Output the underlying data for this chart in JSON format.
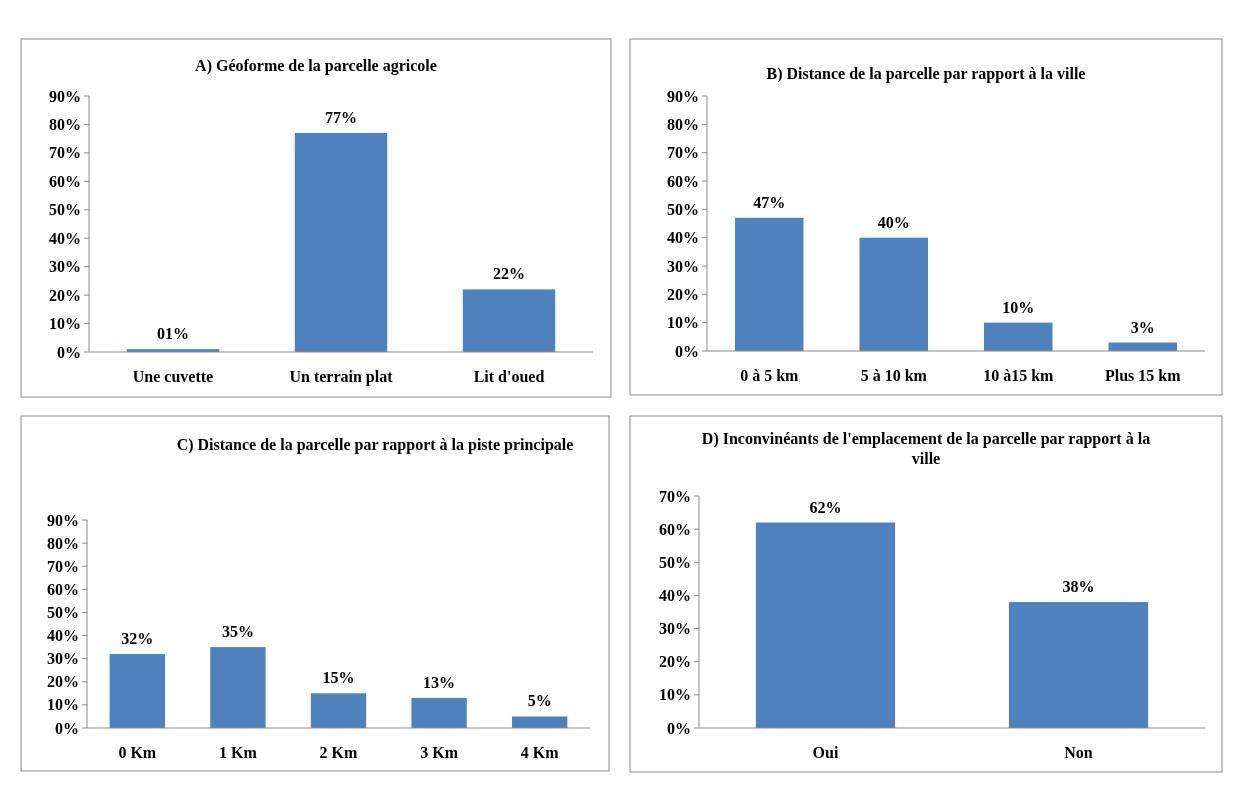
{
  "chart_data": [
    {
      "type": "bar",
      "title": "A) Géoforme de la parcelle agricole",
      "categories": [
        "Une cuvette",
        "Un terrain plat",
        "Lit d'oued"
      ],
      "values": [
        1,
        77,
        22
      ],
      "value_labels": [
        "01%",
        "77%",
        "22%"
      ],
      "color": "#4f81bd",
      "ylim": [
        0,
        90
      ],
      "yticks": [
        {
          "value": 0,
          "label": "0%"
        },
        {
          "value": 10,
          "label": "10%"
        },
        {
          "value": 20,
          "label": "20%"
        },
        {
          "value": 30,
          "label": "30%"
        },
        {
          "value": 40,
          "label": "40%"
        },
        {
          "value": 50,
          "label": "50%"
        },
        {
          "value": 60,
          "label": "60%"
        },
        {
          "value": 70,
          "label": "70%"
        },
        {
          "value": 80,
          "label": "80%"
        },
        {
          "value": 90,
          "label": "90%"
        }
      ]
    },
    {
      "type": "bar",
      "title": "B) Distance de la parcelle par rapport à la ville",
      "categories": [
        "0 à 5 km",
        "5 à 10 km",
        "10 à15 km",
        "Plus 15 km"
      ],
      "values": [
        47,
        40,
        10,
        3
      ],
      "value_labels": [
        "47%",
        "40%",
        "10%",
        "3%"
      ],
      "color": "#4f81bd",
      "ylim": [
        0,
        90
      ],
      "yticks": [
        {
          "value": 0,
          "label": "0%"
        },
        {
          "value": 10,
          "label": "10%"
        },
        {
          "value": 20,
          "label": "20%"
        },
        {
          "value": 30,
          "label": "30%"
        },
        {
          "value": 40,
          "label": "40%"
        },
        {
          "value": 50,
          "label": "50%"
        },
        {
          "value": 60,
          "label": "60%"
        },
        {
          "value": 70,
          "label": "70%"
        },
        {
          "value": 80,
          "label": "80%"
        },
        {
          "value": 90,
          "label": "90%"
        }
      ]
    },
    {
      "type": "bar",
      "title": "C) Distance de la parcelle par rapport à la piste principale",
      "categories": [
        "0 Km",
        "1 Km",
        "2 Km",
        "3 Km",
        "4 Km"
      ],
      "values": [
        32,
        35,
        15,
        13,
        5
      ],
      "value_labels": [
        "32%",
        "35%",
        "15%",
        "13%",
        "5%"
      ],
      "color": "#4f81bd",
      "ylim": [
        0,
        90
      ],
      "yticks": [
        {
          "value": 0,
          "label": "0%"
        },
        {
          "value": 10,
          "label": "10%"
        },
        {
          "value": 20,
          "label": "20%"
        },
        {
          "value": 30,
          "label": "30%"
        },
        {
          "value": 40,
          "label": "40%"
        },
        {
          "value": 50,
          "label": "50%"
        },
        {
          "value": 60,
          "label": "60%"
        },
        {
          "value": 70,
          "label": "70%"
        },
        {
          "value": 80,
          "label": "80%"
        },
        {
          "value": 90,
          "label": "90%"
        }
      ]
    },
    {
      "type": "bar",
      "title": "D) Inconvinéants de l'emplacement de la parcelle par rapport à la ville",
      "categories": [
        "Oui",
        "Non"
      ],
      "values": [
        62,
        38
      ],
      "value_labels": [
        "62%",
        "38%"
      ],
      "color": "#4f81bd",
      "ylim": [
        0,
        70
      ],
      "yticks": [
        {
          "value": 0,
          "label": "0%"
        },
        {
          "value": 10,
          "label": "10%"
        },
        {
          "value": 20,
          "label": "20%"
        },
        {
          "value": 30,
          "label": "30%"
        },
        {
          "value": 40,
          "label": "40%"
        },
        {
          "value": 50,
          "label": "50%"
        },
        {
          "value": 60,
          "label": "60%"
        },
        {
          "value": 70,
          "label": "70%"
        }
      ]
    }
  ]
}
